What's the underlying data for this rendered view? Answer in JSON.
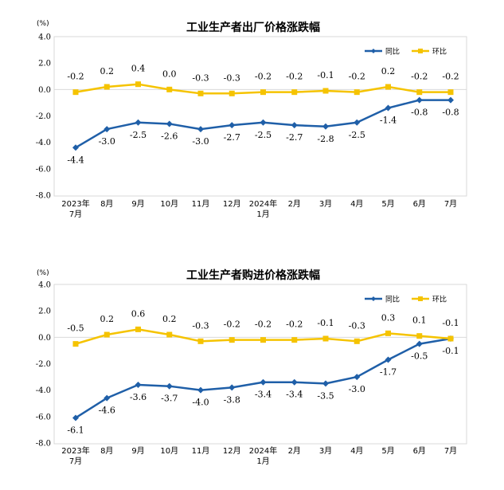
{
  "chart_data": [
    {
      "type": "line",
      "title": "工业生产者出厂价格涨跌幅",
      "unit": "(%)",
      "ylim": [
        -8.0,
        4.0
      ],
      "yticks": [
        "4.0",
        "2.0",
        "0.0",
        "-2.0",
        "-4.0",
        "-6.0",
        "-8.0"
      ],
      "categories": [
        [
          "2023年",
          "7月"
        ],
        [
          "8月"
        ],
        [
          "9月"
        ],
        [
          "10月"
        ],
        [
          "11月"
        ],
        [
          "12月"
        ],
        [
          "2024年",
          "1月"
        ],
        [
          "2月"
        ],
        [
          "3月"
        ],
        [
          "4月"
        ],
        [
          "5月"
        ],
        [
          "6月"
        ],
        [
          "7月"
        ]
      ],
      "series": [
        {
          "name": "同比",
          "color": "#1f5fa8",
          "values": [
            -4.4,
            -3.0,
            -2.5,
            -2.6,
            -3.0,
            -2.7,
            -2.5,
            -2.7,
            -2.8,
            -2.5,
            -1.4,
            -0.8,
            -0.8
          ],
          "labels": [
            "-4.4",
            "-3.0",
            "-2.5",
            "-2.6",
            "-3.0",
            "-2.7",
            "-2.5",
            "-2.7",
            "-2.8",
            "-2.5",
            "-1.4",
            "-0.8",
            "-0.8"
          ]
        },
        {
          "name": "环比",
          "color": "#f5c300",
          "values": [
            -0.2,
            0.2,
            0.4,
            0.0,
            -0.3,
            -0.3,
            -0.2,
            -0.2,
            -0.1,
            -0.2,
            0.2,
            -0.2,
            -0.2
          ],
          "labels": [
            "-0.2",
            "0.2",
            "0.4",
            "0.0",
            "-0.3",
            "-0.3",
            "-0.2",
            "-0.2",
            "-0.1",
            "-0.2",
            "0.2",
            "-0.2",
            "-0.2"
          ]
        }
      ]
    },
    {
      "type": "line",
      "title": "工业生产者购进价格涨跌幅",
      "unit": "(%)",
      "ylim": [
        -8.0,
        4.0
      ],
      "yticks": [
        "4.0",
        "2.0",
        "0.0",
        "-2.0",
        "-4.0",
        "-6.0",
        "-8.0"
      ],
      "categories": [
        [
          "2023年",
          "7月"
        ],
        [
          "8月"
        ],
        [
          "9月"
        ],
        [
          "10月"
        ],
        [
          "11月"
        ],
        [
          "12月"
        ],
        [
          "2024年",
          "1月"
        ],
        [
          "2月"
        ],
        [
          "3月"
        ],
        [
          "4月"
        ],
        [
          "5月"
        ],
        [
          "6月"
        ],
        [
          "7月"
        ]
      ],
      "series": [
        {
          "name": "同比",
          "color": "#1f5fa8",
          "values": [
            -6.1,
            -4.6,
            -3.6,
            -3.7,
            -4.0,
            -3.8,
            -3.4,
            -3.4,
            -3.5,
            -3.0,
            -1.7,
            -0.5,
            -0.1
          ],
          "labels": [
            "-6.1",
            "-4.6",
            "-3.6",
            "-3.7",
            "-4.0",
            "-3.8",
            "-3.4",
            "-3.4",
            "-3.5",
            "-3.0",
            "-1.7",
            "-0.5",
            "-0.1"
          ]
        },
        {
          "name": "环比",
          "color": "#f5c300",
          "values": [
            -0.5,
            0.2,
            0.6,
            0.2,
            -0.3,
            -0.2,
            -0.2,
            -0.2,
            -0.1,
            -0.3,
            0.3,
            0.1,
            -0.1
          ],
          "labels": [
            "-0.5",
            "0.2",
            "0.6",
            "0.2",
            "-0.3",
            "-0.2",
            "-0.2",
            "-0.2",
            "-0.1",
            "-0.3",
            "0.3",
            "0.1",
            "-0.1"
          ]
        }
      ]
    }
  ]
}
